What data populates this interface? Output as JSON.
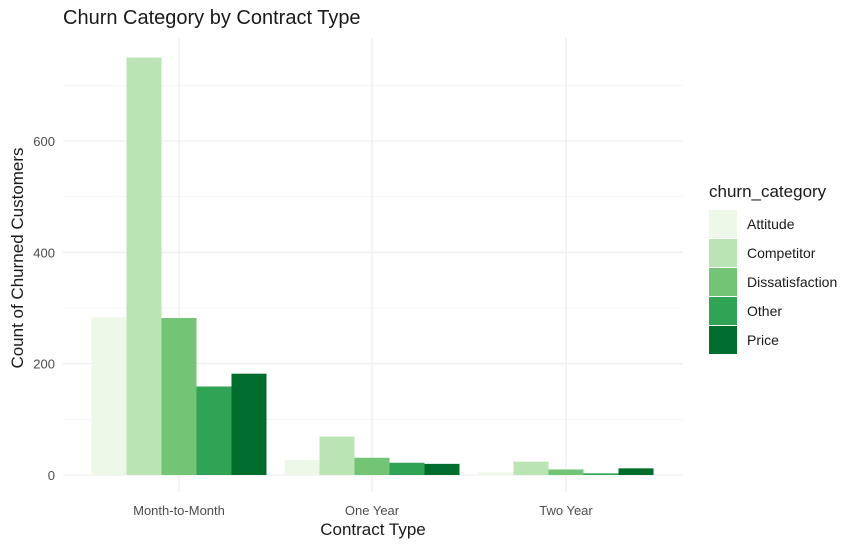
{
  "chart_data": {
    "type": "bar",
    "title": "Churn Category by Contract Type",
    "xlabel": "Contract Type",
    "ylabel": "Count of Churned Customers",
    "categories": [
      "Month-to-Month",
      "One Year",
      "Two Year"
    ],
    "series": [
      {
        "name": "Attitude",
        "color": "#edf8e9",
        "values": [
          283,
          27,
          5
        ]
      },
      {
        "name": "Competitor",
        "color": "#bae4b3",
        "values": [
          750,
          69,
          24
        ]
      },
      {
        "name": "Dissatisfaction",
        "color": "#74c476",
        "values": [
          282,
          31,
          10
        ]
      },
      {
        "name": "Other",
        "color": "#31a354",
        "values": [
          159,
          22,
          3
        ]
      },
      {
        "name": "Price",
        "color": "#006d2c",
        "values": [
          182,
          20,
          12
        ]
      }
    ],
    "ylim": [
      0,
      780
    ],
    "yticks": [
      0,
      200,
      400,
      600
    ],
    "grid": true,
    "legend_title": "churn_category",
    "legend_position": "right"
  }
}
